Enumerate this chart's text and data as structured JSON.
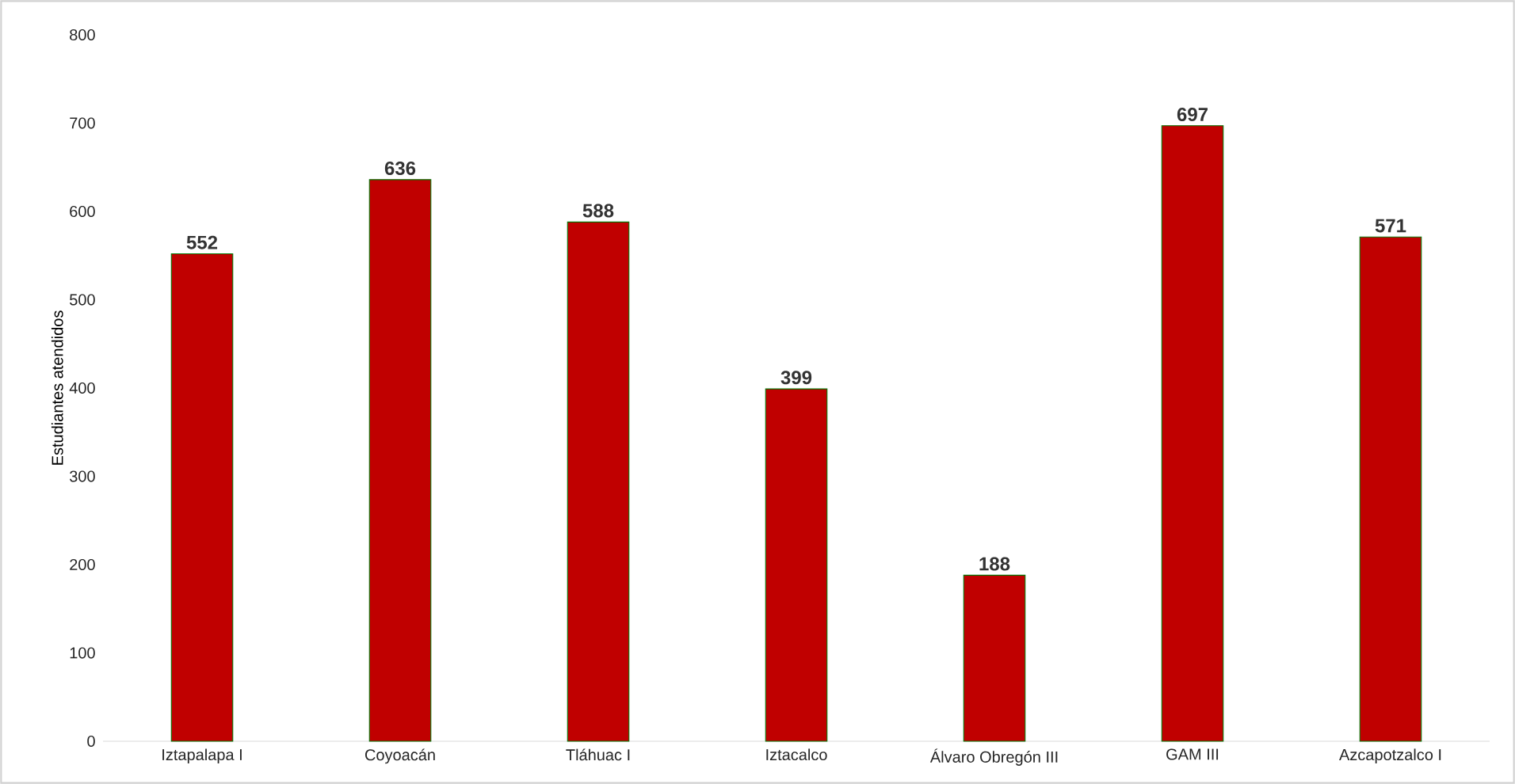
{
  "chart_data": {
    "type": "bar",
    "ylabel": "Estudiantes atendidos",
    "categories": [
      "Iztapalapa I",
      "Coyoacán",
      "Tláhuac I",
      "Iztacalco",
      "Álvaro Obregón III",
      "GAM III",
      "Azcapotzalco I"
    ],
    "values": [
      552,
      636,
      588,
      399,
      188,
      697,
      571
    ],
    "color": "#c00000",
    "ylim": [
      0,
      800
    ],
    "yticks": [
      0,
      100,
      200,
      300,
      400,
      500,
      600,
      700,
      800
    ],
    "data_labels": true
  }
}
